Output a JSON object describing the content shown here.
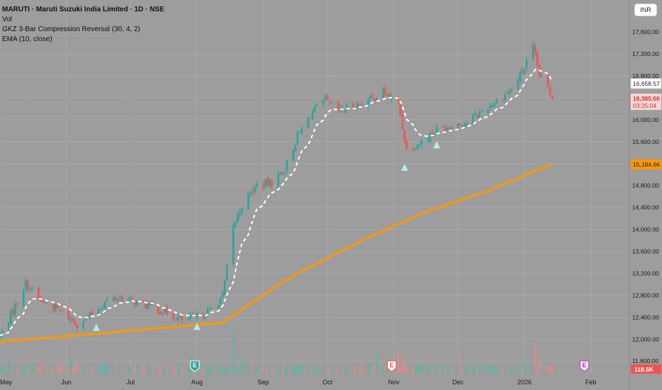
{
  "legend": {
    "title": "MARUTI · Maruti Suzuki India Limited · 1D · NSE",
    "vol": "Vol",
    "indicator": "GKZ 3-Bar Compression Reversal (30, 4, 2)",
    "ema": "EMA (10, close)"
  },
  "currency": "INR",
  "colors": {
    "background": "#9d9d9d",
    "up": "#26a69a",
    "down": "#ef5350",
    "ema": "#ffffff",
    "trend": "#ff9800",
    "triangle": "#b2ebf2",
    "current_line": "#e57373"
  },
  "chart_data": {
    "type": "candlestick",
    "y_ticks": [
      11600,
      12000,
      12400,
      12800,
      13200,
      13600,
      14000,
      14400,
      14800,
      15200,
      15600,
      16000,
      16400,
      16800,
      17200,
      17600
    ],
    "y_tick_labels": [
      "11,600.00",
      "12,000.00",
      "12,400.00",
      "12,800.00",
      "13,200.00",
      "13,600.00",
      "14,000.00",
      "14,400.00",
      "14,800.00",
      "15,200.00",
      "15,600.00",
      "16,000.00",
      "16,400.00",
      "16,800.00",
      "17,200.00",
      "17,600.00"
    ],
    "ylim": [
      11370,
      17950
    ],
    "x_labels": [
      "May",
      "Jun",
      "Jul",
      "Aug",
      "Sep",
      "Oct",
      "Nov",
      "Dec",
      "2026",
      "Feb"
    ],
    "x_dates": [
      "2025-05-01",
      "2025-06-01",
      "2025-07-01",
      "2025-08-01",
      "2025-09-01",
      "2025-10-01",
      "2025-11-01",
      "2025-12-01",
      "2026-01-01",
      "2026-02-01"
    ],
    "x_range": [
      "2025-05-01",
      "2026-02-19"
    ],
    "close_series": [
      {
        "date": "2025-05-01",
        "close": 12050
      },
      {
        "date": "2025-05-08",
        "close": 12600
      },
      {
        "date": "2025-05-13",
        "close": 13020
      },
      {
        "date": "2025-05-20",
        "close": 12700
      },
      {
        "date": "2025-05-28",
        "close": 12550
      },
      {
        "date": "2025-06-06",
        "close": 12280
      },
      {
        "date": "2025-06-12",
        "close": 12420
      },
      {
        "date": "2025-06-20",
        "close": 12700
      },
      {
        "date": "2025-06-26",
        "close": 12760
      },
      {
        "date": "2025-07-03",
        "close": 12680
      },
      {
        "date": "2025-07-10",
        "close": 12600
      },
      {
        "date": "2025-07-18",
        "close": 12480
      },
      {
        "date": "2025-07-25",
        "close": 12350
      },
      {
        "date": "2025-07-31",
        "close": 12380
      },
      {
        "date": "2025-08-07",
        "close": 12520
      },
      {
        "date": "2025-08-13",
        "close": 12780
      },
      {
        "date": "2025-08-18",
        "close": 14050
      },
      {
        "date": "2025-08-22",
        "close": 14450
      },
      {
        "date": "2025-08-29",
        "close": 14800
      },
      {
        "date": "2025-09-05",
        "close": 14850
      },
      {
        "date": "2025-09-11",
        "close": 15100
      },
      {
        "date": "2025-09-17",
        "close": 15700
      },
      {
        "date": "2025-09-24",
        "close": 16150
      },
      {
        "date": "2025-09-30",
        "close": 16350
      },
      {
        "date": "2025-10-06",
        "close": 16150
      },
      {
        "date": "2025-10-13",
        "close": 16250
      },
      {
        "date": "2025-10-20",
        "close": 16350
      },
      {
        "date": "2025-10-27",
        "close": 16500
      },
      {
        "date": "2025-11-03",
        "close": 16300
      },
      {
        "date": "2025-11-07",
        "close": 15450
      },
      {
        "date": "2025-11-14",
        "close": 15600
      },
      {
        "date": "2025-11-21",
        "close": 15820
      },
      {
        "date": "2025-11-28",
        "close": 15900
      },
      {
        "date": "2025-12-05",
        "close": 15950
      },
      {
        "date": "2025-12-12",
        "close": 16150
      },
      {
        "date": "2025-12-19",
        "close": 16350
      },
      {
        "date": "2025-12-26",
        "close": 16550
      },
      {
        "date": "2026-01-01",
        "close": 16950
      },
      {
        "date": "2026-01-05",
        "close": 17300
      },
      {
        "date": "2026-01-08",
        "close": 16800
      },
      {
        "date": "2026-01-12",
        "close": 16600
      },
      {
        "date": "2026-01-14",
        "close": 16385
      }
    ],
    "ema_label": "16,658.57",
    "ema_last_value": 16658.57,
    "current_price": 16385,
    "current_price_label": "16,385.00",
    "countdown": "03:25:04",
    "trend_label": "15,184.66",
    "trend_last_value": 15184.66,
    "trend_series": [
      {
        "date": "2025-05-01",
        "value": 11950
      },
      {
        "date": "2025-08-13",
        "value": 12300
      },
      {
        "date": "2025-09-15",
        "value": 13150
      },
      {
        "date": "2025-10-15",
        "value": 13750
      },
      {
        "date": "2025-11-15",
        "value": 14300
      },
      {
        "date": "2025-12-15",
        "value": 14700
      },
      {
        "date": "2026-01-14",
        "value": 15184.66
      }
    ],
    "triangles": [
      {
        "date": "2025-06-15",
        "value": 12200
      },
      {
        "date": "2025-08-01",
        "value": 12220
      },
      {
        "date": "2025-11-06",
        "value": 15120
      },
      {
        "date": "2025-11-21",
        "value": 15530
      }
    ],
    "volume_label": "118.5K",
    "volume_ylim": [
      0,
      160
    ],
    "volume_spikes": [
      {
        "date": "2025-05-05",
        "value": 40
      },
      {
        "date": "2025-06-03",
        "value": 45
      },
      {
        "date": "2025-06-18",
        "value": 38
      },
      {
        "date": "2025-07-29",
        "value": 58
      },
      {
        "date": "2025-08-18",
        "value": 155
      },
      {
        "date": "2025-08-22",
        "value": 55
      },
      {
        "date": "2025-10-24",
        "value": 70
      },
      {
        "date": "2025-11-03",
        "value": 75
      },
      {
        "date": "2025-11-05",
        "value": 60
      },
      {
        "date": "2025-12-02",
        "value": 55
      },
      {
        "date": "2026-01-06",
        "value": 100
      },
      {
        "date": "2026-01-08",
        "value": 55
      }
    ],
    "events": [
      {
        "date": "2025-07-31",
        "label": "E",
        "kind": "earnings-green"
      },
      {
        "date": "2025-10-31",
        "label": "E",
        "kind": "earnings-red"
      },
      {
        "date": "2026-01-29",
        "label": "E",
        "kind": "earnings-future"
      }
    ]
  }
}
